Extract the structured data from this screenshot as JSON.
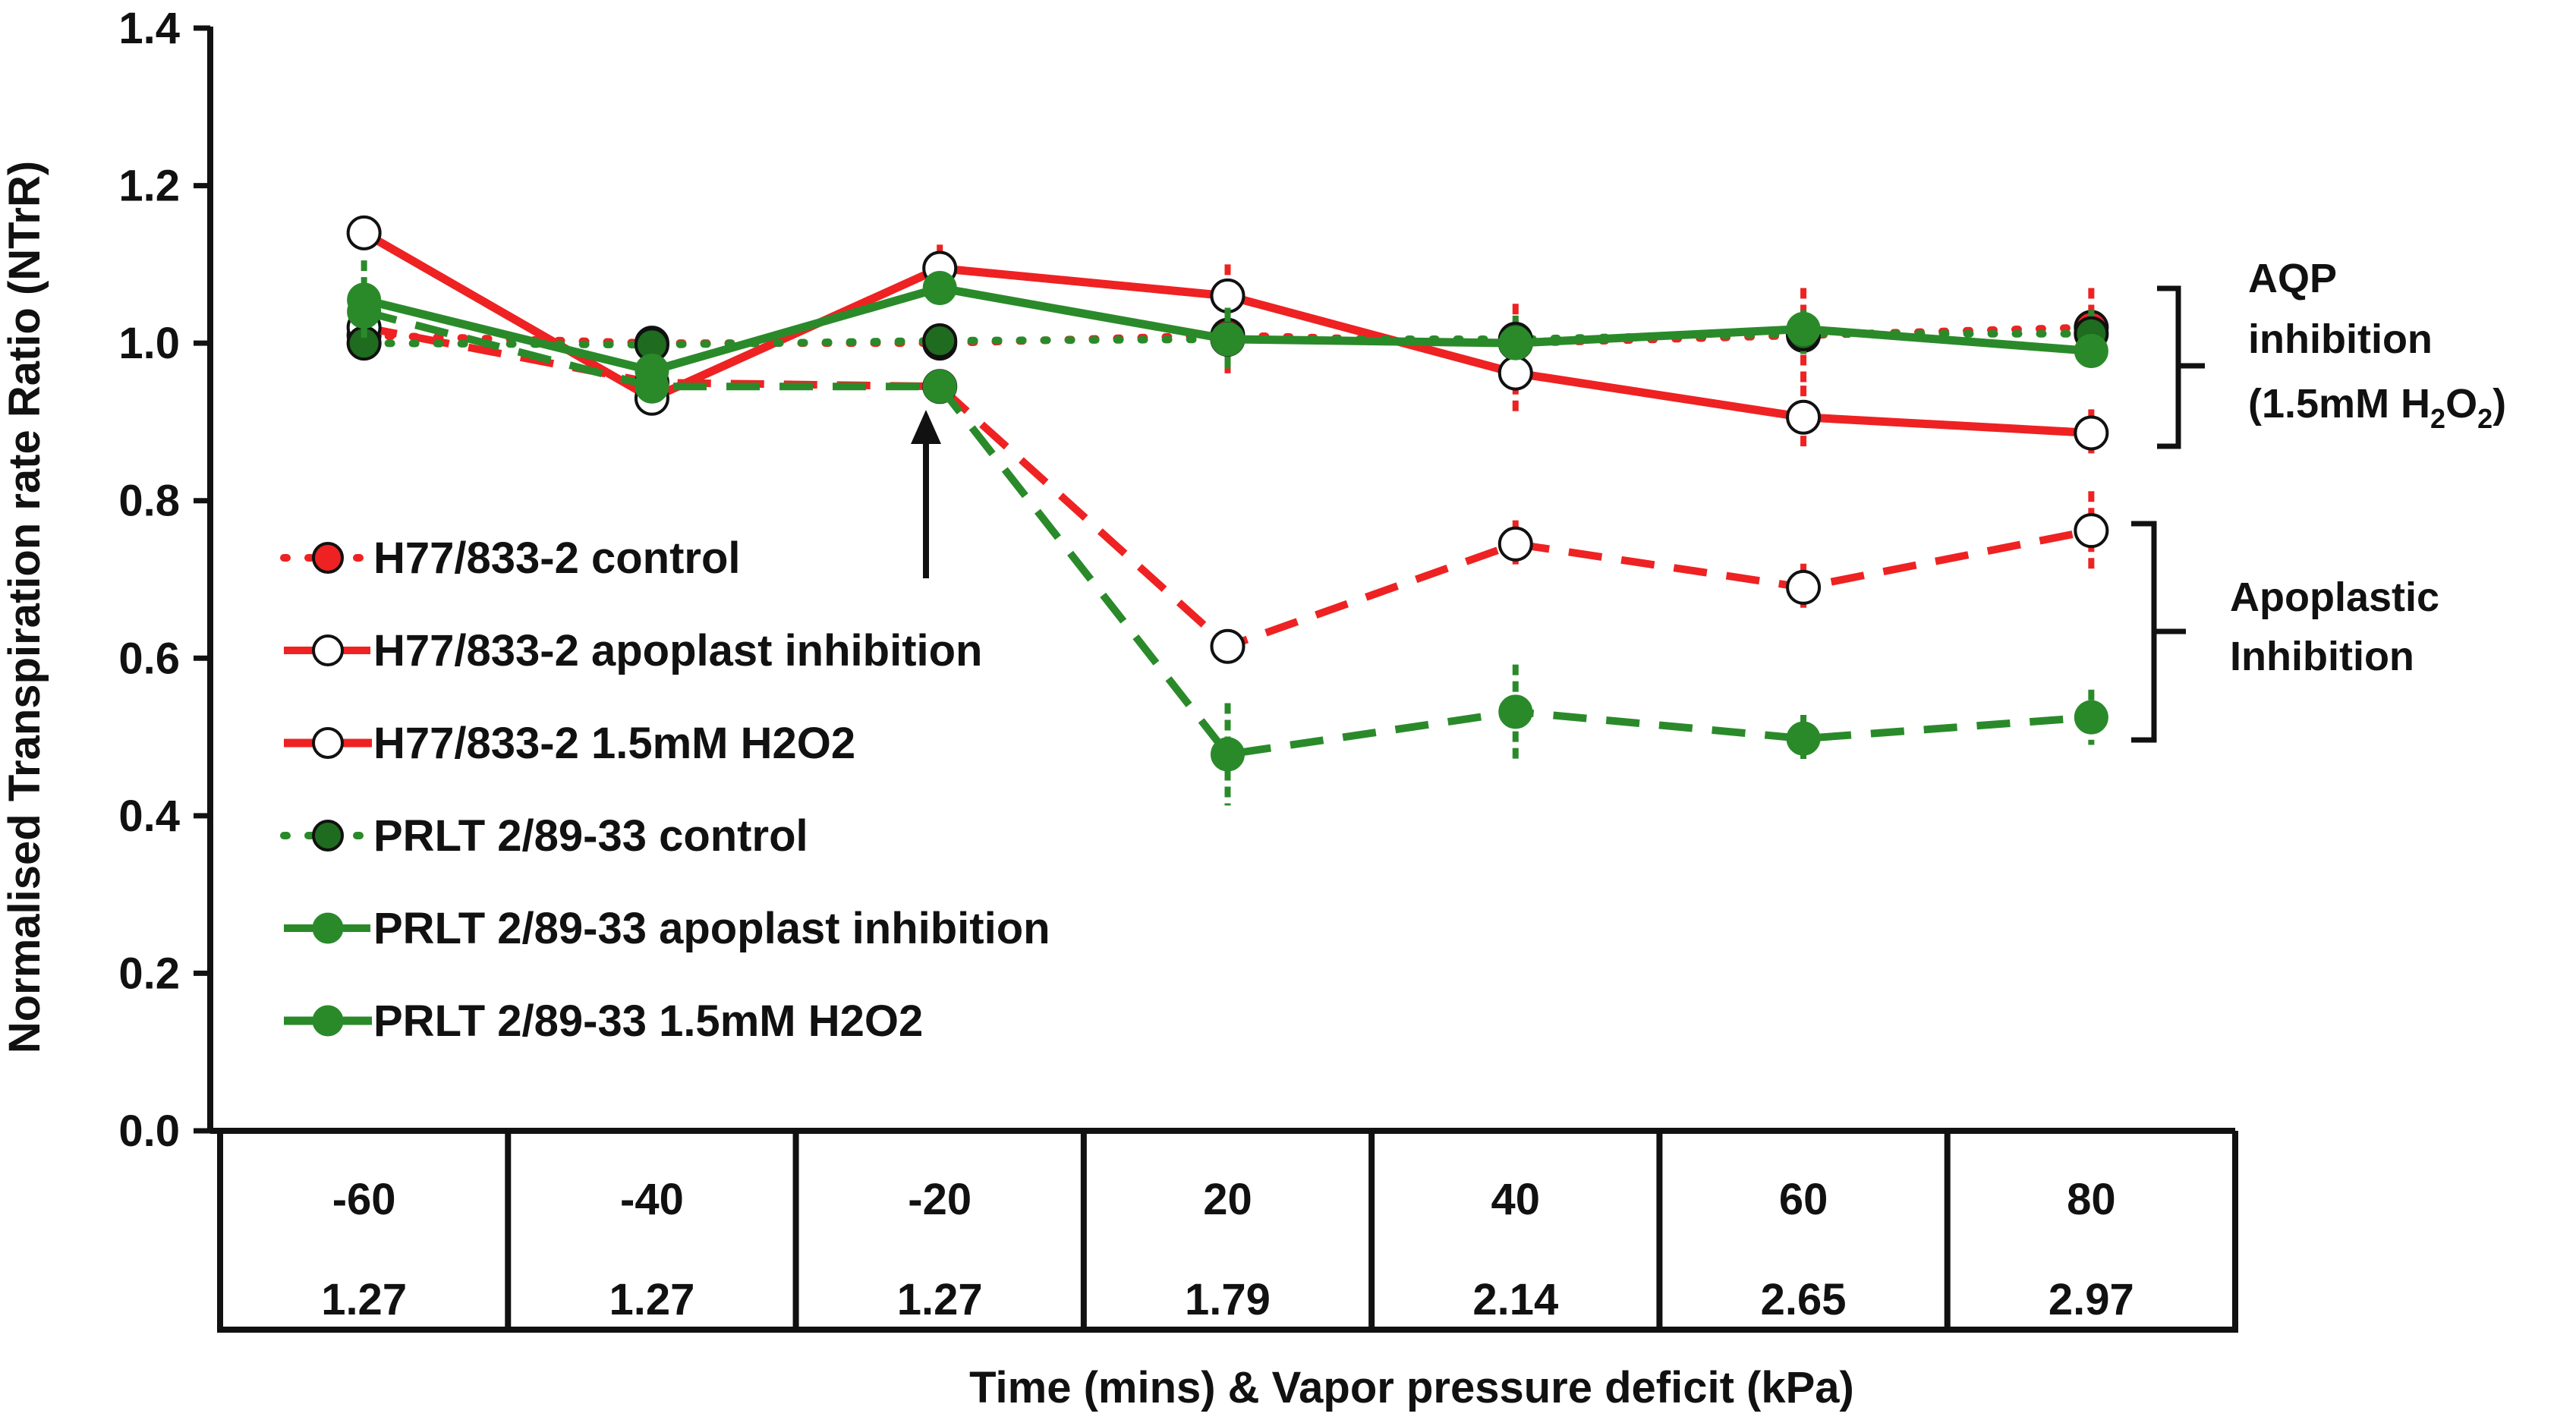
{
  "chart_data": {
    "type": "line",
    "title": "",
    "ylabel": "Normalised Transpiration rate Ratio (NTrR)",
    "xlabel": "Time (mins) & Vapor pressure deficit (kPa)",
    "ylim": [
      0,
      1.4
    ],
    "yticks": [
      "0.0",
      "0.2",
      "0.4",
      "0.6",
      "0.8",
      "1.0",
      "1.2",
      "1.4"
    ],
    "time_labels": [
      "-60",
      "-40",
      "-20",
      "20",
      "40",
      "60",
      "80"
    ],
    "vpd_labels": [
      "1.27",
      "1.27",
      "1.27",
      "1.79",
      "2.14",
      "2.65",
      "2.97"
    ],
    "colors": {
      "red": "#ee2222",
      "green": "#2a8a2a",
      "axis": "#111111"
    },
    "series": [
      {
        "name": "H77/833-2 control",
        "color": "#ee2222",
        "style": "dotted",
        "marker": "red-filled",
        "values": [
          1.01,
          1.0,
          1.0,
          1.01,
          1.0,
          1.01,
          1.02
        ],
        "errors": [
          0.02,
          0.02,
          0.02,
          0.05,
          0.05,
          0.06,
          0.05
        ]
      },
      {
        "name": "H77/833-2 apoplast inhibition",
        "color": "#ee2222",
        "style": "dashed",
        "marker": "open",
        "values": [
          1.02,
          0.95,
          0.945,
          0.615,
          0.745,
          0.69,
          0.762
        ],
        "errors": [
          0.02,
          0.02,
          0.02,
          0.02,
          0.03,
          0.03,
          0.05
        ]
      },
      {
        "name": "H77/833-2 1.5mM H2O2",
        "color": "#ee2222",
        "style": "solid",
        "marker": "open",
        "values": [
          1.14,
          0.93,
          1.095,
          1.06,
          0.962,
          0.906,
          0.886
        ],
        "errors": [
          0.02,
          0.02,
          0.03,
          0.04,
          0.05,
          0.04,
          0.03
        ]
      },
      {
        "name": "PRLT 2/89-33 control",
        "color": "#2a8a2a",
        "style": "dotted",
        "marker": "green-dark",
        "values": [
          1.0,
          0.998,
          1.003,
          1.005,
          1.005,
          1.012,
          1.012
        ],
        "errors": [
          0.02,
          0.02,
          0.02,
          0.03,
          0.03,
          0.03,
          0.03
        ]
      },
      {
        "name": "PRLT 2/89-33 apoplast inhibition",
        "color": "#2a8a2a",
        "style": "dashed",
        "marker": "green-filled",
        "values": [
          1.04,
          0.945,
          0.945,
          0.478,
          0.532,
          0.498,
          0.525
        ],
        "errors": [
          0.02,
          0.02,
          0.02,
          0.065,
          0.06,
          0.03,
          0.035
        ]
      },
      {
        "name": "PRLT 2/89-33 1.5mM H2O2",
        "color": "#2a8a2a",
        "style": "solid",
        "marker": "green-filled",
        "values": [
          1.055,
          0.965,
          1.07,
          1.005,
          1.0,
          1.018,
          0.99
        ],
        "errors": [
          0.05,
          0.02,
          0.02,
          0.04,
          0.02,
          0.02,
          0.02
        ]
      }
    ],
    "annotations": {
      "aqp_lines": [
        "AQP",
        "inhibition",
        "(1.5mM H",
        "2",
        "O",
        "2",
        ")"
      ],
      "apoplastic_lines": [
        "Apoplastic",
        "Inhibition"
      ]
    }
  }
}
